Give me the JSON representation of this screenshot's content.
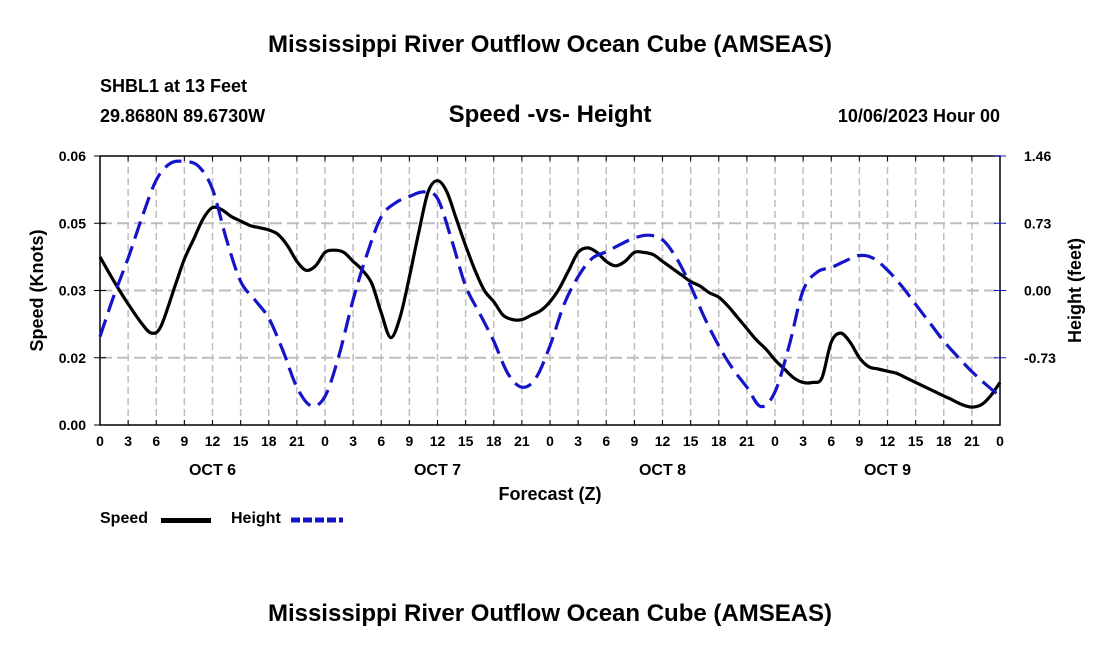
{
  "chart_data": {
    "type": "line",
    "title": "Mississippi River Outflow Ocean Cube (AMSEAS)",
    "station": "SHBL1 at 13 Feet",
    "location": "29.8680N  89.6730W",
    "subtitle": "Speed -vs- Height",
    "date": "10/06/2023 Hour 00",
    "xlabel": "Forecast (Z)",
    "ylabel_left": "Speed (Knots)",
    "ylabel_right": "Height (feet)",
    "xlim": [
      0,
      96
    ],
    "ylim_left": [
      0,
      0.06
    ],
    "ylim_right": [
      -1.46,
      1.46
    ],
    "x_ticks": [
      0,
      3,
      6,
      9,
      12,
      15,
      18,
      21,
      24,
      27,
      30,
      33,
      36,
      39,
      42,
      45,
      48,
      51,
      54,
      57,
      60,
      63,
      66,
      69,
      72,
      75,
      78,
      81,
      84,
      87,
      90,
      93,
      96
    ],
    "x_tick_labels": [
      "0",
      "3",
      "6",
      "9",
      "12",
      "15",
      "18",
      "21",
      "0",
      "3",
      "6",
      "9",
      "12",
      "15",
      "18",
      "21",
      "0",
      "3",
      "6",
      "9",
      "12",
      "15",
      "18",
      "21",
      "0",
      "3",
      "6",
      "9",
      "12",
      "15",
      "18",
      "21",
      "0"
    ],
    "day_labels": [
      {
        "x": 12,
        "label": "OCT 6"
      },
      {
        "x": 36,
        "label": "OCT 7"
      },
      {
        "x": 60,
        "label": "OCT 8"
      },
      {
        "x": 84,
        "label": "OCT 9"
      }
    ],
    "y_left_ticks": [
      {
        "v": 0.0,
        "label": "0.00"
      },
      {
        "v": 0.015,
        "label": "0.02"
      },
      {
        "v": 0.03,
        "label": "0.03"
      },
      {
        "v": 0.045,
        "label": "0.05"
      },
      {
        "v": 0.06,
        "label": "0.06"
      }
    ],
    "y_right_ticks": [
      {
        "v": -0.73,
        "label": "-0.73"
      },
      {
        "v": 0.0,
        "label": "0.00"
      },
      {
        "v": 0.73,
        "label": "0.73"
      },
      {
        "v": 1.46,
        "label": "1.46"
      }
    ],
    "grid": true,
    "series": [
      {
        "name": "Speed",
        "axis": "left",
        "color": "#000000",
        "dash": false,
        "x": [
          0,
          1.5,
          3,
          4.5,
          5.5,
          6.5,
          8,
          9,
          10,
          11,
          12,
          13,
          14,
          15,
          16,
          17,
          18,
          19,
          20,
          21,
          22,
          23,
          24,
          25,
          26,
          27,
          28,
          29,
          30,
          31,
          32,
          33,
          34,
          35,
          36,
          37,
          38,
          39,
          40,
          41,
          42,
          43,
          44,
          45,
          46,
          47,
          48,
          49,
          50,
          51,
          52,
          53,
          54,
          55,
          56,
          57,
          58,
          59,
          60,
          61,
          62,
          63,
          64,
          65,
          66,
          67,
          68,
          69,
          70,
          71,
          72,
          73,
          74,
          75,
          76,
          77,
          78,
          79,
          80,
          81,
          82,
          83,
          84,
          85,
          86,
          87,
          88,
          89,
          90,
          91,
          92,
          93,
          94,
          95,
          96
        ],
        "y": [
          0.0375,
          0.032,
          0.027,
          0.0225,
          0.0205,
          0.022,
          0.031,
          0.037,
          0.0415,
          0.046,
          0.0485,
          0.048,
          0.0465,
          0.0455,
          0.0445,
          0.044,
          0.0435,
          0.0425,
          0.04,
          0.0365,
          0.0345,
          0.0355,
          0.0385,
          0.039,
          0.0385,
          0.0365,
          0.0345,
          0.0315,
          0.025,
          0.0195,
          0.024,
          0.033,
          0.043,
          0.052,
          0.0545,
          0.052,
          0.046,
          0.04,
          0.0345,
          0.03,
          0.0275,
          0.0245,
          0.0235,
          0.0235,
          0.0245,
          0.0255,
          0.0275,
          0.0305,
          0.0345,
          0.0385,
          0.0395,
          0.0385,
          0.0365,
          0.0355,
          0.0365,
          0.0385,
          0.0385,
          0.038,
          0.0365,
          0.035,
          0.0335,
          0.032,
          0.031,
          0.0295,
          0.0285,
          0.0265,
          0.024,
          0.0215,
          0.019,
          0.017,
          0.0145,
          0.0125,
          0.0105,
          0.0095,
          0.0095,
          0.0105,
          0.0185,
          0.0205,
          0.0185,
          0.015,
          0.013,
          0.0125,
          0.012,
          0.0115,
          0.0105,
          0.0095,
          0.0085,
          0.0075,
          0.0065,
          0.0055,
          0.0045,
          0.004,
          0.0045,
          0.0065,
          0.0095
        ]
      },
      {
        "name": "Height",
        "axis": "right",
        "color": "#1414c8",
        "dash": true,
        "x": [
          0,
          1.5,
          3,
          4.5,
          6,
          7.5,
          9,
          10.5,
          12,
          13.5,
          15,
          16.5,
          18,
          19.5,
          21,
          22.5,
          24,
          25.5,
          27,
          28.5,
          30,
          31.5,
          33,
          34.5,
          36,
          37.5,
          39,
          40.5,
          42,
          43.5,
          45,
          46.5,
          48,
          49.5,
          51,
          52.5,
          54,
          55.5,
          57,
          58.5,
          60,
          61.5,
          63,
          64.5,
          66,
          67.5,
          69,
          70.5,
          72,
          73.5,
          75,
          76.5,
          78,
          79.5,
          81,
          82.5,
          84,
          85.5,
          87,
          88.5,
          90,
          91.5,
          93,
          94.5,
          96
        ],
        "y": [
          -0.5,
          -0.05,
          0.35,
          0.8,
          1.2,
          1.38,
          1.4,
          1.35,
          1.1,
          0.55,
          0.1,
          -0.1,
          -0.3,
          -0.65,
          -1.05,
          -1.25,
          -1.15,
          -0.7,
          -0.1,
          0.4,
          0.8,
          0.95,
          1.02,
          1.07,
          1.0,
          0.55,
          0.05,
          -0.25,
          -0.55,
          -0.9,
          -1.05,
          -0.95,
          -0.6,
          -0.15,
          0.15,
          0.35,
          0.42,
          0.5,
          0.57,
          0.6,
          0.55,
          0.35,
          0.05,
          -0.3,
          -0.6,
          -0.85,
          -1.05,
          -1.26,
          -1.1,
          -0.6,
          0.0,
          0.2,
          0.25,
          0.32,
          0.38,
          0.35,
          0.22,
          0.05,
          -0.15,
          -0.35,
          -0.55,
          -0.72,
          -0.88,
          -1.02,
          -1.15
        ]
      }
    ]
  },
  "legend": {
    "speed_label": "Speed",
    "height_label": "Height"
  },
  "repeated_title": "Mississippi River Outflow Ocean Cube (AMSEAS)"
}
